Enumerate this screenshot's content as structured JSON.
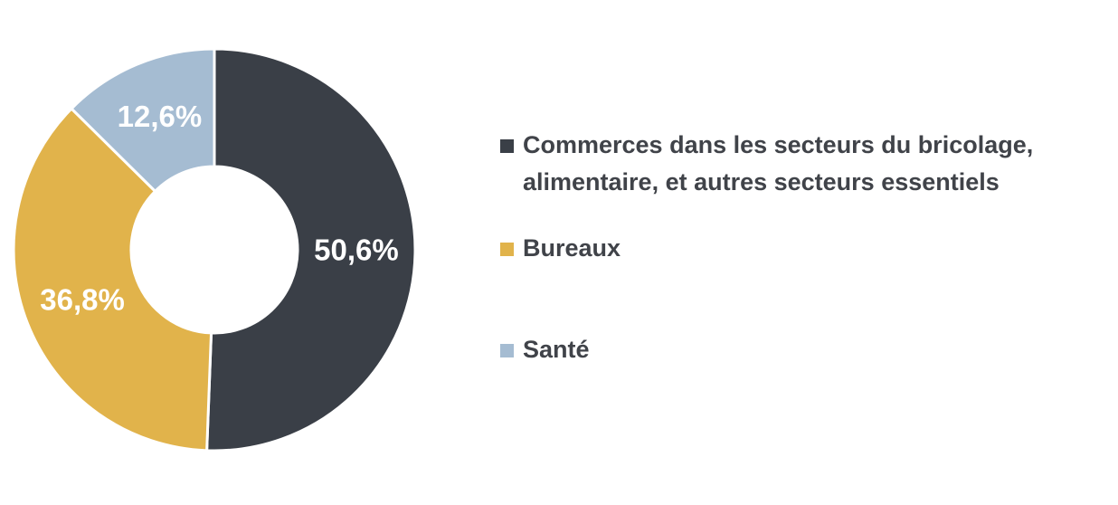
{
  "chart_data": {
    "type": "donut",
    "categories": [
      "Commerces dans les secteurs du bricolage, alimentaire, et autres secteurs essentiels",
      "Bureaux",
      "Santé"
    ],
    "values": [
      50.6,
      36.8,
      12.6
    ],
    "value_labels": [
      "50,6%",
      "36,8%",
      "12,6%"
    ],
    "colors": [
      "#3a3f47",
      "#e1b34b",
      "#a5bcd2"
    ],
    "legend": "right"
  }
}
